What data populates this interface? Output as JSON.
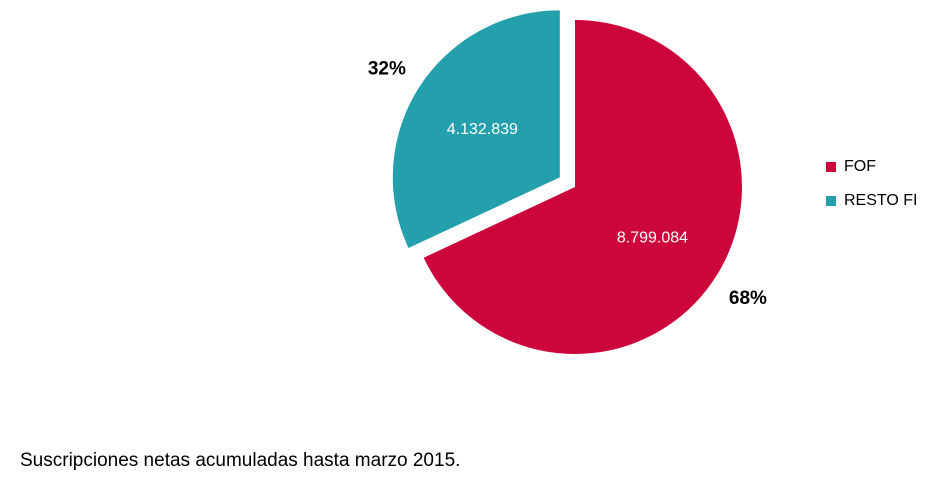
{
  "chart_data": {
    "type": "pie",
    "categories": [
      "FOF",
      "RESTO FI"
    ],
    "values": [
      8799084,
      4132839
    ],
    "value_labels": [
      "8.799.084",
      "4.132.839"
    ],
    "percent_labels": [
      "68%",
      "32%"
    ],
    "colors": [
      "#cc053b",
      "#249fac"
    ],
    "exploded": [
      "RESTO FI"
    ],
    "legend_position": "right",
    "start_angle_deg": 0,
    "direction": "clockwise"
  },
  "legend": {
    "items": [
      {
        "label": "FOF",
        "color": "#cc053b"
      },
      {
        "label": "RESTO FI",
        "color": "#249fac"
      }
    ]
  },
  "caption": "Suscripciones netas acumuladas hasta marzo 2015."
}
